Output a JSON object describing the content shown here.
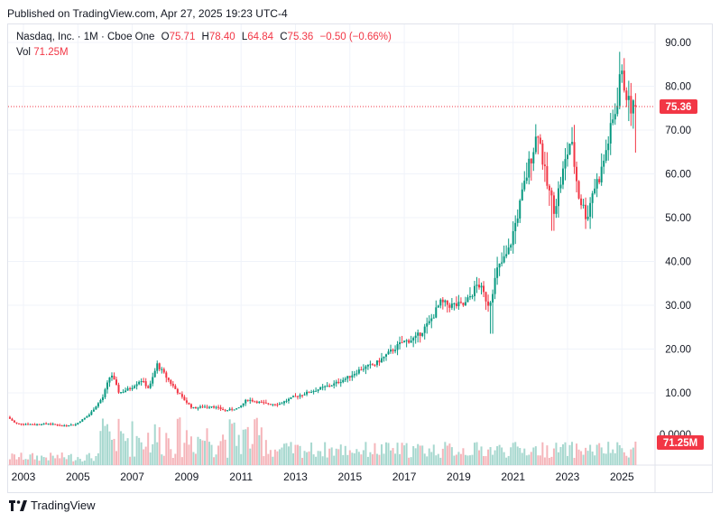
{
  "header": {
    "published": "Published on TradingView.com, Apr 27, 2025 19:23 UTC-4"
  },
  "legend": {
    "symbol": "Nasdaq, Inc. · 1M · Cboe One",
    "o_label": "O",
    "o_value": "75.71",
    "h_label": "H",
    "h_value": "78.40",
    "l_label": "L",
    "l_value": "64.84",
    "c_label": "C",
    "c_value": "75.36",
    "change": "−0.50 (−0.66%)",
    "vol_label": "Vol",
    "vol_value": "71.25M"
  },
  "badges": {
    "price": "75.36",
    "volume": "71.25M",
    "partial_tick": "0.0000"
  },
  "footer": {
    "brand": "TradingView"
  },
  "colors": {
    "up": "#089981",
    "down": "#f23645",
    "vol_up": "#a7d8cf",
    "vol_down": "#f5b5ba",
    "grid": "#f0f3fa",
    "axis_text": "#131722"
  },
  "chart_data": {
    "type": "candlestick",
    "ylim": [
      0,
      95
    ],
    "yticks": [
      "90.00",
      "80.00",
      "70.00",
      "60.00",
      "50.00",
      "40.00",
      "30.00",
      "20.00",
      "10.00"
    ],
    "xticks": [
      "2003",
      "2005",
      "2007",
      "2009",
      "2011",
      "2013",
      "2015",
      "2017",
      "2019",
      "2021",
      "2023",
      "2025"
    ],
    "x_range": [
      2002.5,
      2025.6
    ],
    "last_price": 75.36,
    "last_volume": "71.25M",
    "path_points": [
      [
        2002.5,
        4.5
      ],
      [
        2002.8,
        3.0
      ],
      [
        2003.5,
        2.8
      ],
      [
        2004.0,
        3.0
      ],
      [
        2004.5,
        2.5
      ],
      [
        2005.0,
        2.8
      ],
      [
        2005.5,
        5.0
      ],
      [
        2006.0,
        9.0
      ],
      [
        2006.3,
        14.5
      ],
      [
        2006.6,
        10.0
      ],
      [
        2007.0,
        11.0
      ],
      [
        2007.4,
        13.0
      ],
      [
        2007.7,
        11.0
      ],
      [
        2008.0,
        16.5
      ],
      [
        2008.4,
        13.0
      ],
      [
        2008.9,
        9.0
      ],
      [
        2009.3,
        6.5
      ],
      [
        2010.0,
        7.0
      ],
      [
        2010.5,
        6.0
      ],
      [
        2011.0,
        6.5
      ],
      [
        2011.3,
        8.5
      ],
      [
        2012.0,
        7.5
      ],
      [
        2012.5,
        7.5
      ],
      [
        2013.0,
        9.0
      ],
      [
        2013.5,
        10.0
      ],
      [
        2014.0,
        11.0
      ],
      [
        2014.5,
        12.0
      ],
      [
        2015.0,
        13.5
      ],
      [
        2015.5,
        15.5
      ],
      [
        2016.0,
        16.5
      ],
      [
        2016.5,
        19.0
      ],
      [
        2017.0,
        21.5
      ],
      [
        2017.5,
        22.5
      ],
      [
        2018.0,
        26.0
      ],
      [
        2018.4,
        30.5
      ],
      [
        2018.8,
        30.0
      ],
      [
        2019.3,
        30.0
      ],
      [
        2019.8,
        35.0
      ],
      [
        2020.2,
        30.0
      ],
      [
        2020.5,
        38.0
      ],
      [
        2020.9,
        42.0
      ],
      [
        2021.3,
        52.0
      ],
      [
        2021.7,
        63.0
      ],
      [
        2022.0,
        70.0
      ],
      [
        2022.3,
        58.0
      ],
      [
        2022.6,
        52.0
      ],
      [
        2022.9,
        60.0
      ],
      [
        2023.2,
        68.0
      ],
      [
        2023.5,
        55.0
      ],
      [
        2023.8,
        50.0
      ],
      [
        2024.0,
        56.0
      ],
      [
        2024.3,
        60.0
      ],
      [
        2024.6,
        68.0
      ],
      [
        2024.9,
        76.0
      ],
      [
        2025.0,
        83.0
      ],
      [
        2025.2,
        80.0
      ],
      [
        2025.35,
        75.36
      ]
    ]
  }
}
